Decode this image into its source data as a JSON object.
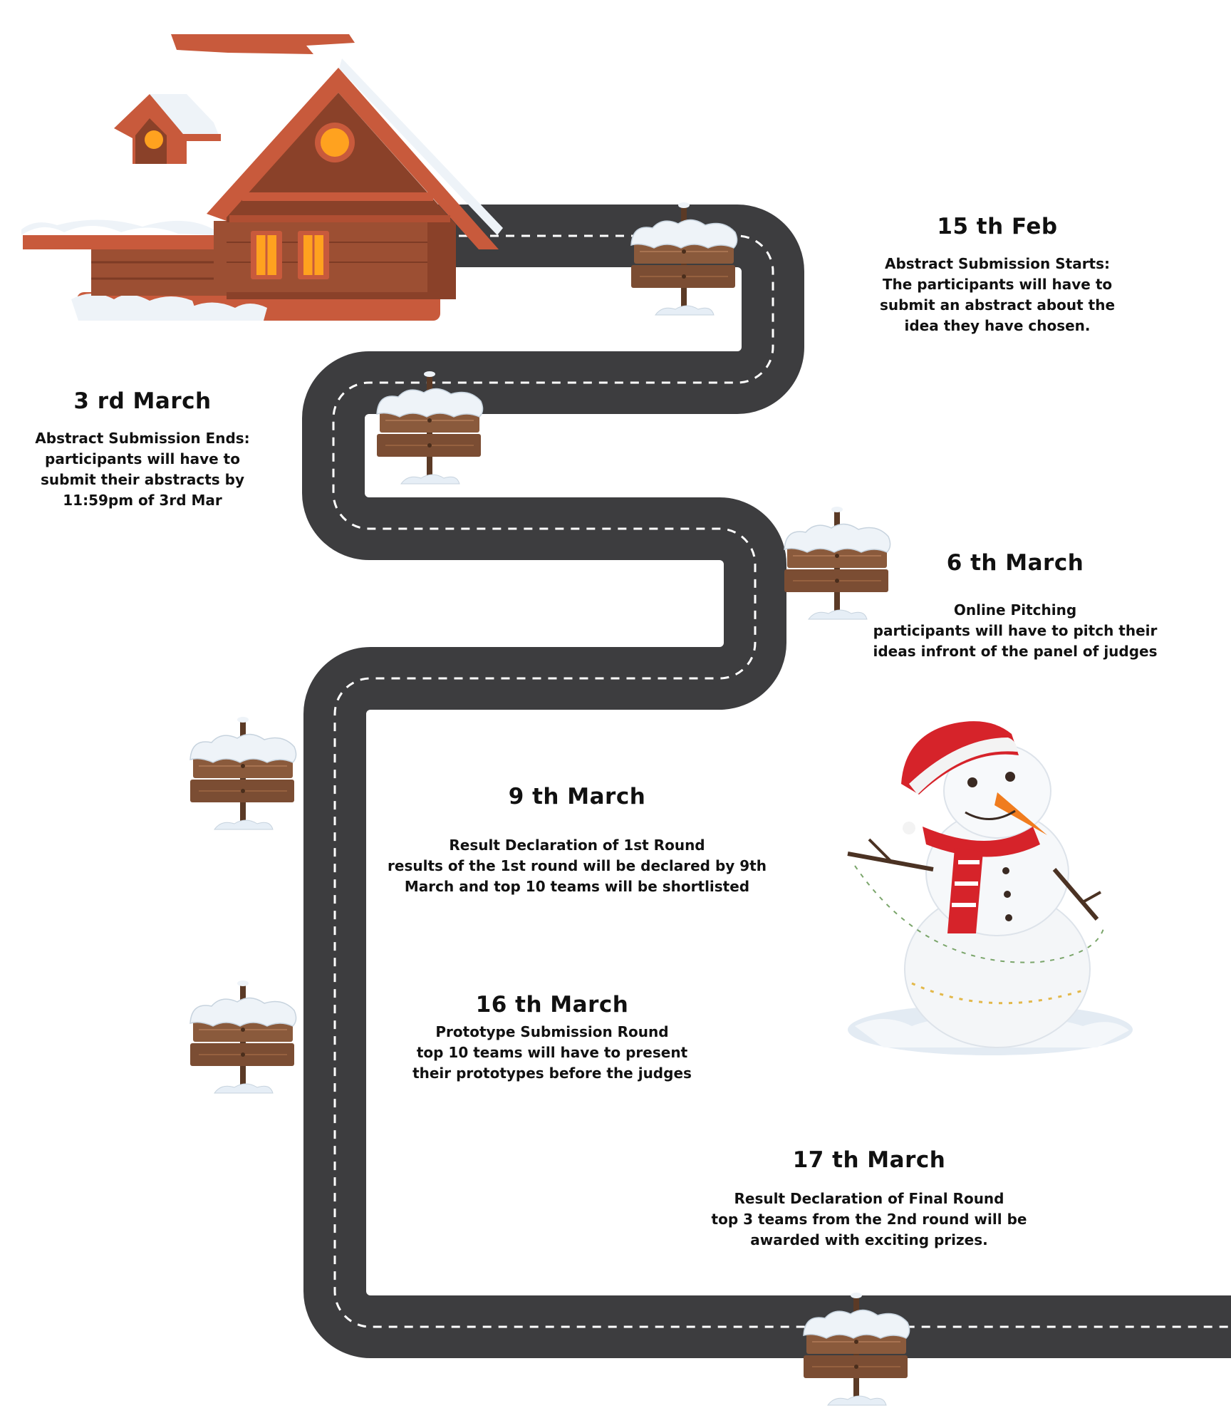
{
  "colors": {
    "road": "#3d3d3f",
    "road_dash": "#ffffff",
    "roof": "#c85a3c",
    "wall": "#9c4f33",
    "window_glow": "#ffa21f",
    "snow": "#eef3f8",
    "sign_wood": "#8a5a3c",
    "hat_red": "#d6232a",
    "carrot": "#f07c1e"
  },
  "illustrations": [
    "snowy-house",
    "snowman",
    "wooden-signpost"
  ],
  "events": [
    {
      "date": "15 th Feb",
      "title": "Abstract Submission Starts:",
      "description": "The participants will have to submit an abstract about the idea they have chosen."
    },
    {
      "date": "3 rd March",
      "title": "Abstract Submission Ends:",
      "description": "participants will have to submit their abstracts by 11:59pm of 3rd Mar"
    },
    {
      "date": "6 th March",
      "title": "Online Pitching",
      "description": "participants will have to pitch their ideas infront of the panel of judges"
    },
    {
      "date": "9 th March",
      "title": "Result Declaration of 1st Round",
      "description": "results of the 1st round will be declared by 9th March and top 10 teams will be shortlisted"
    },
    {
      "date": "16 th March",
      "title": "Prototype Submission Round",
      "description": "top 10 teams will have to present their prototypes before the judges"
    },
    {
      "date": "17 th March",
      "title": "Result Declaration of Final Round",
      "description": "top 3 teams from the 2nd round will be awarded with exciting prizes."
    }
  ]
}
